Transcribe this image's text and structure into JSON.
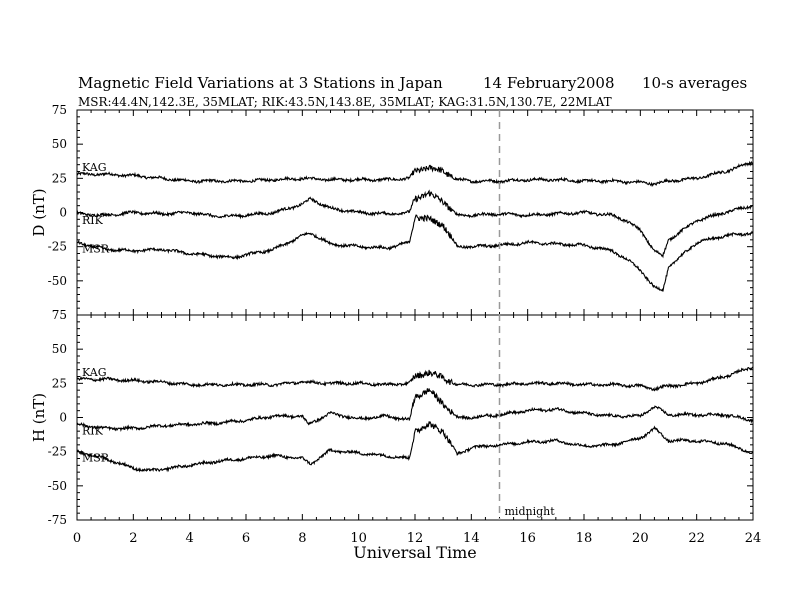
{
  "header": {
    "title": "Magnetic Field Variations at 3 Stations in Japan",
    "date": "14 February2008",
    "averaging": "10-s averages",
    "stations": "MSR:44.4N,142.3E, 35MLAT;  RIK:43.5N,143.8E, 35MLAT;  KAG:31.5N,130.7E, 22MLAT"
  },
  "chart_data": {
    "type": "line",
    "x_label": "Universal Time",
    "x_range": [
      0,
      24
    ],
    "x_ticks": [
      0,
      2,
      4,
      6,
      8,
      10,
      12,
      14,
      16,
      18,
      20,
      22,
      24
    ],
    "grid": false,
    "annotation": {
      "text": "midnight",
      "x": 15,
      "style": "dashed vertical line"
    },
    "panels": [
      {
        "y_label": "D (nT)",
        "y_range": [
          -75,
          75
        ],
        "y_ticks": [
          -75,
          -50,
          -25,
          0,
          25,
          50,
          75
        ],
        "series": [
          {
            "name": "KAG",
            "x": [
              0,
              1,
              2,
              3,
              4,
              5,
              6,
              7,
              8,
              9,
              10,
              11,
              11.8,
              12,
              12.5,
              13,
              13.5,
              14,
              15,
              16,
              17,
              18,
              19,
              20,
              20.5,
              21,
              22,
              23,
              24
            ],
            "y": [
              28,
              28,
              27,
              25,
              23,
              23,
              23,
              24,
              25,
              24,
              24,
              24,
              25,
              30,
              33,
              30,
              24,
              23,
              23,
              24,
              24,
              23,
              23,
              22,
              21,
              23,
              25,
              30,
              37
            ]
          },
          {
            "name": "RIK",
            "x": [
              0,
              1,
              2,
              3,
              4,
              5,
              6,
              7,
              8,
              8.3,
              9,
              10,
              11,
              11.8,
              12,
              12.5,
              13,
              13.5,
              14,
              15,
              16,
              17,
              18,
              19,
              19.5,
              20,
              20.5,
              20.8,
              21,
              22,
              23,
              24
            ],
            "y": [
              -1,
              -2,
              0,
              -1,
              0,
              -3,
              -2,
              0,
              6,
              10,
              3,
              0,
              -1,
              0,
              10,
              14,
              8,
              -2,
              -2,
              -1,
              -2,
              -1,
              0,
              -2,
              -6,
              -13,
              -28,
              -32,
              -20,
              -6,
              0,
              5
            ]
          },
          {
            "name": "MSR",
            "x": [
              0,
              1,
              2,
              3,
              4,
              5,
              5.5,
              6,
              7,
              8,
              8.3,
              9,
              10,
              11,
              11.8,
              12,
              12.5,
              13,
              13.5,
              14,
              15,
              16,
              17,
              18,
              19,
              19.5,
              20,
              20.5,
              20.8,
              21,
              22,
              23,
              24
            ],
            "y": [
              -22,
              -27,
              -28,
              -27,
              -30,
              -32,
              -33,
              -31,
              -27,
              -17,
              -15,
              -23,
              -25,
              -26,
              -22,
              -3,
              -5,
              -9,
              -25,
              -25,
              -24,
              -22,
              -23,
              -24,
              -28,
              -34,
              -42,
              -55,
              -57,
              -40,
              -22,
              -17,
              -15
            ]
          }
        ]
      },
      {
        "y_label": "H (nT)",
        "y_range": [
          -75,
          75
        ],
        "y_ticks": [
          -75,
          -50,
          -25,
          0,
          25,
          50,
          75
        ],
        "series": [
          {
            "name": "KAG",
            "x": [
              0,
              1,
              2,
              3,
              4,
              5,
              6,
              7,
              8,
              9,
              10,
              11,
              11.8,
              12,
              12.5,
              13,
              13.5,
              14,
              15,
              16,
              17,
              18,
              19,
              20,
              20.5,
              21,
              22,
              23,
              24
            ],
            "y": [
              28,
              28,
              27,
              26,
              24,
              24,
              24,
              24,
              26,
              25,
              25,
              24,
              25,
              30,
              33,
              29,
              24,
              24,
              24,
              25,
              25,
              24,
              24,
              23,
              21,
              23,
              25,
              30,
              37
            ]
          },
          {
            "name": "RIK",
            "x": [
              0,
              1,
              2,
              3,
              4,
              5,
              6,
              7,
              8,
              8.2,
              9,
              10,
              11,
              11.8,
              12,
              12.5,
              13,
              13.5,
              14,
              15,
              16,
              17,
              18,
              19,
              20,
              20.5,
              21,
              22,
              23,
              24
            ],
            "y": [
              -5,
              -8,
              -8,
              -6,
              -5,
              -4,
              -2,
              1,
              1,
              -5,
              3,
              -1,
              1,
              -2,
              15,
              20,
              10,
              0,
              0,
              2,
              5,
              6,
              3,
              1,
              1,
              8,
              2,
              2,
              2,
              -2
            ]
          },
          {
            "name": "MSR",
            "x": [
              0,
              1,
              2,
              2.5,
              3,
              4,
              5,
              6,
              7,
              8,
              8.3,
              9,
              10,
              11,
              11.8,
              12,
              12.5,
              13,
              13.5,
              14,
              15,
              16,
              17,
              18,
              19,
              20,
              20.5,
              21,
              22,
              23,
              24
            ],
            "y": [
              -25,
              -30,
              -37,
              -39,
              -38,
              -35,
              -32,
              -30,
              -28,
              -30,
              -34,
              -24,
              -26,
              -28,
              -30,
              -10,
              -5,
              -10,
              -27,
              -22,
              -20,
              -18,
              -17,
              -21,
              -20,
              -15,
              -8,
              -17,
              -17,
              -19,
              -26
            ]
          }
        ]
      }
    ]
  }
}
